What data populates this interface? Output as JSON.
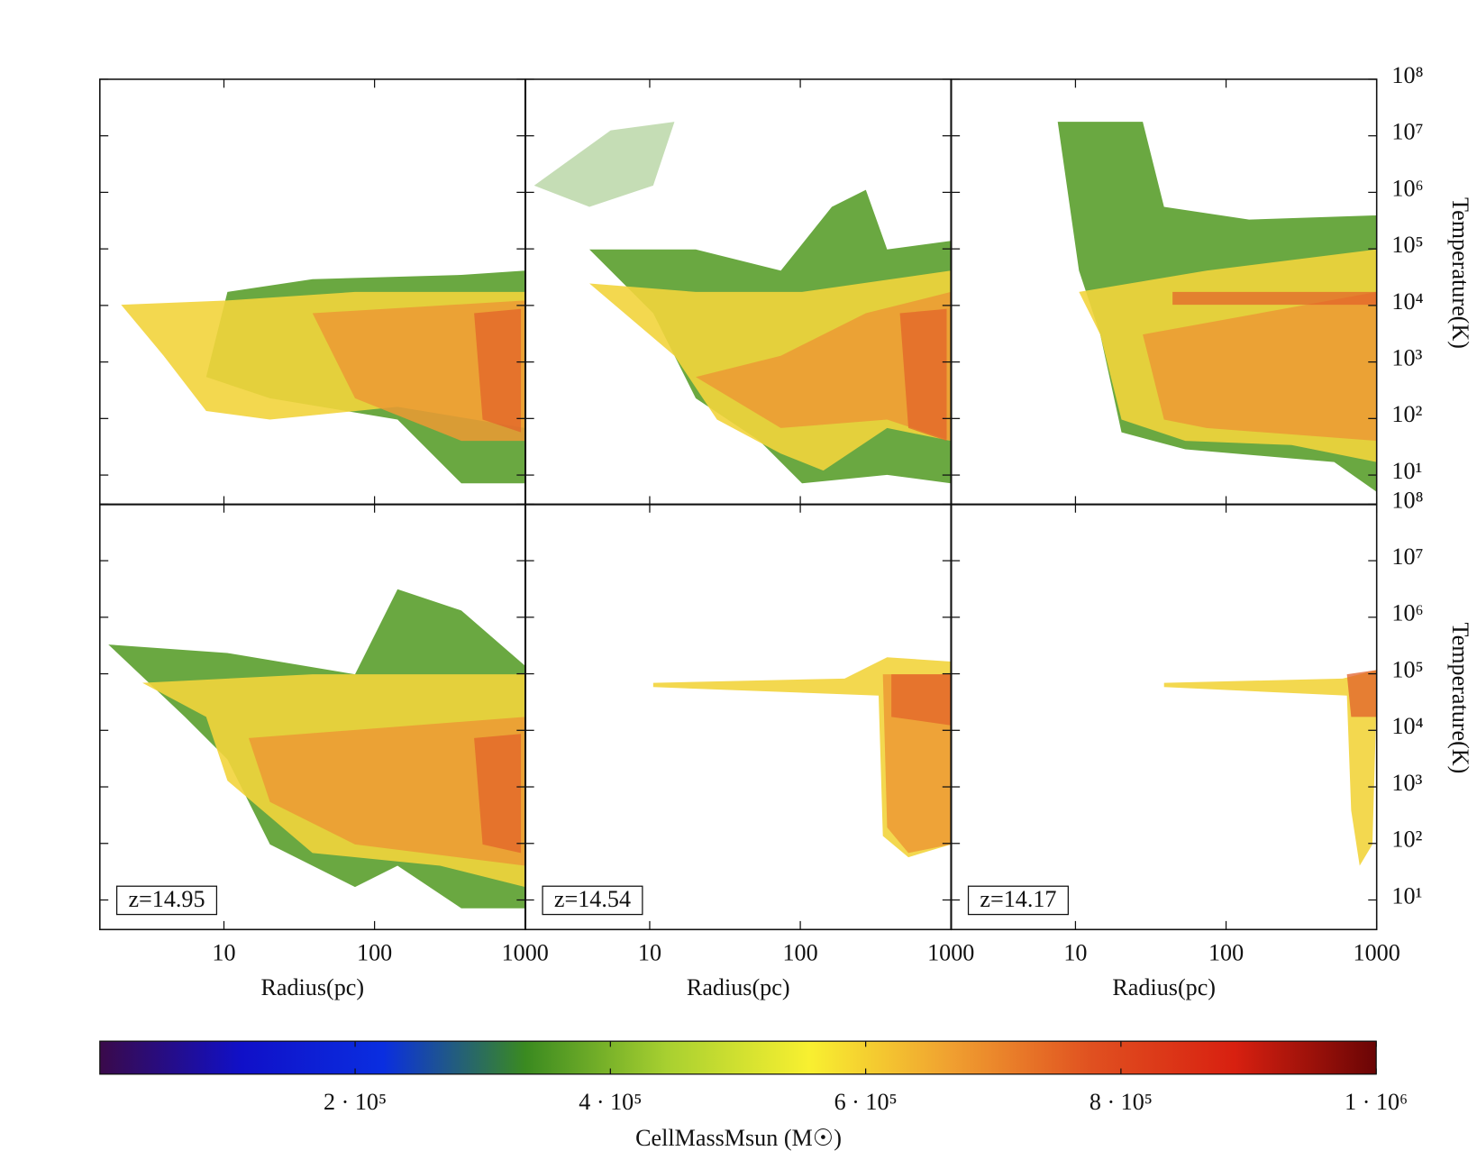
{
  "chart_data": {
    "type": "phase",
    "log_x": true,
    "log_y": true,
    "xlabel": "Radius(pc)",
    "ylabel": "Temperature(K)",
    "xlim": [
      1.5,
      1000
    ],
    "xticks": [
      10,
      100,
      1000
    ],
    "ylim": [
      3,
      100000000
    ],
    "yticks": [
      {
        "value": 10,
        "label": "10¹"
      },
      {
        "value": 100,
        "label": "10²"
      },
      {
        "value": 1000,
        "label": "10³"
      },
      {
        "value": 10000,
        "label": "10⁴"
      },
      {
        "value": 100000,
        "label": "10⁵"
      },
      {
        "value": 1000000,
        "label": "10⁶"
      },
      {
        "value": 10000000,
        "label": "10⁷"
      },
      {
        "value": 100000000,
        "label": "10⁸"
      }
    ],
    "annotations": [
      "z=14.95",
      "z=14.54",
      "z=14.17"
    ],
    "colorbar": {
      "label": "CellMassMsun (M☉)",
      "lim": [
        0,
        1000000
      ],
      "ticks": [
        {
          "value": 200000,
          "label": "2 · 10⁵"
        },
        {
          "value": 400000,
          "label": "4 · 10⁵"
        },
        {
          "value": 600000,
          "label": "6 · 10⁵"
        },
        {
          "value": 800000,
          "label": "8 · 10⁵"
        },
        {
          "value": 1000000,
          "label": "1 · 10⁶"
        }
      ],
      "colors": [
        "#3a0a4a",
        "#1010c8",
        "#0a2ee0",
        "#3a8a20",
        "#a8d030",
        "#f8f030",
        "#f0a030",
        "#e05020",
        "#d82010",
        "#6a0505"
      ]
    }
  }
}
